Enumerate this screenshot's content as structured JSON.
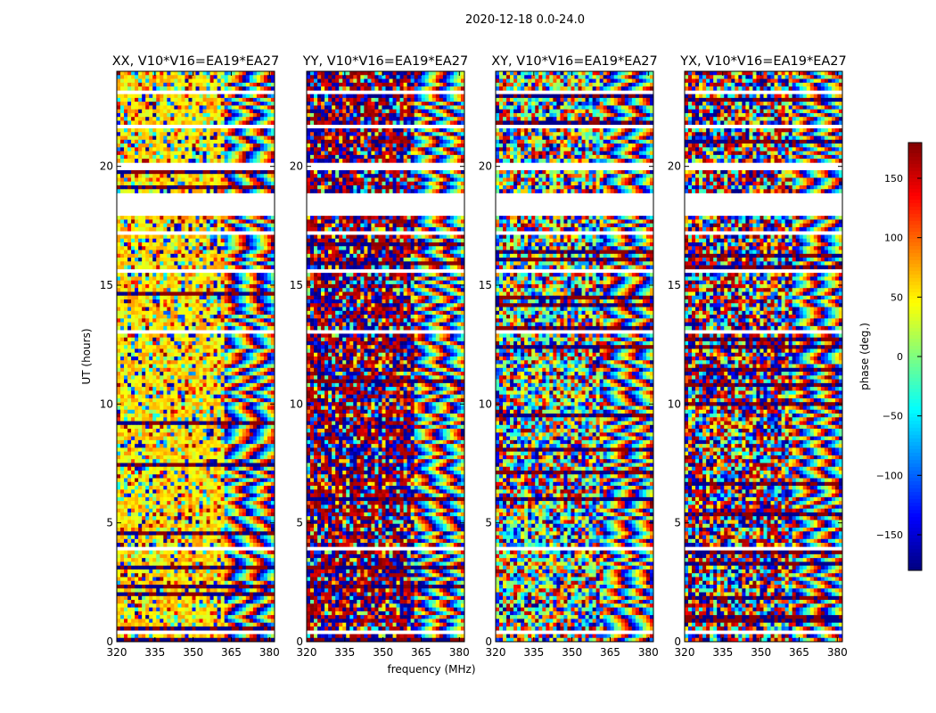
{
  "figure": {
    "suptitle": "2020-12-18 0.0-24.0",
    "xlabel": "frequency (MHz)",
    "ylabel": "UT (hours)"
  },
  "colors": {
    "colormap": [
      "#00007f",
      "#0000ff",
      "#007fff",
      "#00ffff",
      "#7fff7f",
      "#ffff00",
      "#ff7f00",
      "#ff0000",
      "#7f0000"
    ],
    "gap": "#ffffff",
    "frame": "#000000"
  },
  "chart_data": {
    "type": "heatmap",
    "xlim": [
      320,
      382
    ],
    "ylim": [
      0,
      24
    ],
    "xticks": [
      320,
      335,
      350,
      365,
      380
    ],
    "yticks": [
      0,
      5,
      10,
      15,
      20
    ],
    "panels": [
      {
        "title": "XX, V10*V16=EA19*EA27",
        "bias": 55,
        "coherence": 0.62
      },
      {
        "title": "YY, V10*V16=EA19*EA27",
        "bias": 175,
        "coherence": 0.58
      },
      {
        "title": "XY, V10*V16=EA19*EA27",
        "bias": 0,
        "coherence": 0.08
      },
      {
        "title": "YX, V10*V16=EA19*EA27",
        "bias": 170,
        "coherence": 0.25
      }
    ],
    "flagged_ut_ranges": [
      [
        18.0,
        18.9
      ],
      [
        19.9,
        20.1
      ],
      [
        21.6,
        21.7
      ],
      [
        17.2,
        17.25
      ],
      [
        15.5,
        15.6
      ],
      [
        13.0,
        13.05
      ],
      [
        11.2,
        11.25
      ],
      [
        8.8,
        8.85
      ],
      [
        6.9,
        6.95
      ],
      [
        5.0,
        5.03
      ],
      [
        3.9,
        4.0
      ],
      [
        1.55,
        1.6
      ],
      [
        0.35,
        0.4
      ],
      [
        23.1,
        23.15
      ]
    ],
    "colorbar": {
      "label": "phase (deg.)",
      "range": [
        -180,
        180
      ],
      "ticks": [
        150,
        100,
        50,
        0,
        -50,
        -100,
        -150
      ],
      "tick_labels": [
        "150",
        "100",
        "50",
        "0",
        "−50",
        "−100",
        "−150"
      ]
    }
  }
}
